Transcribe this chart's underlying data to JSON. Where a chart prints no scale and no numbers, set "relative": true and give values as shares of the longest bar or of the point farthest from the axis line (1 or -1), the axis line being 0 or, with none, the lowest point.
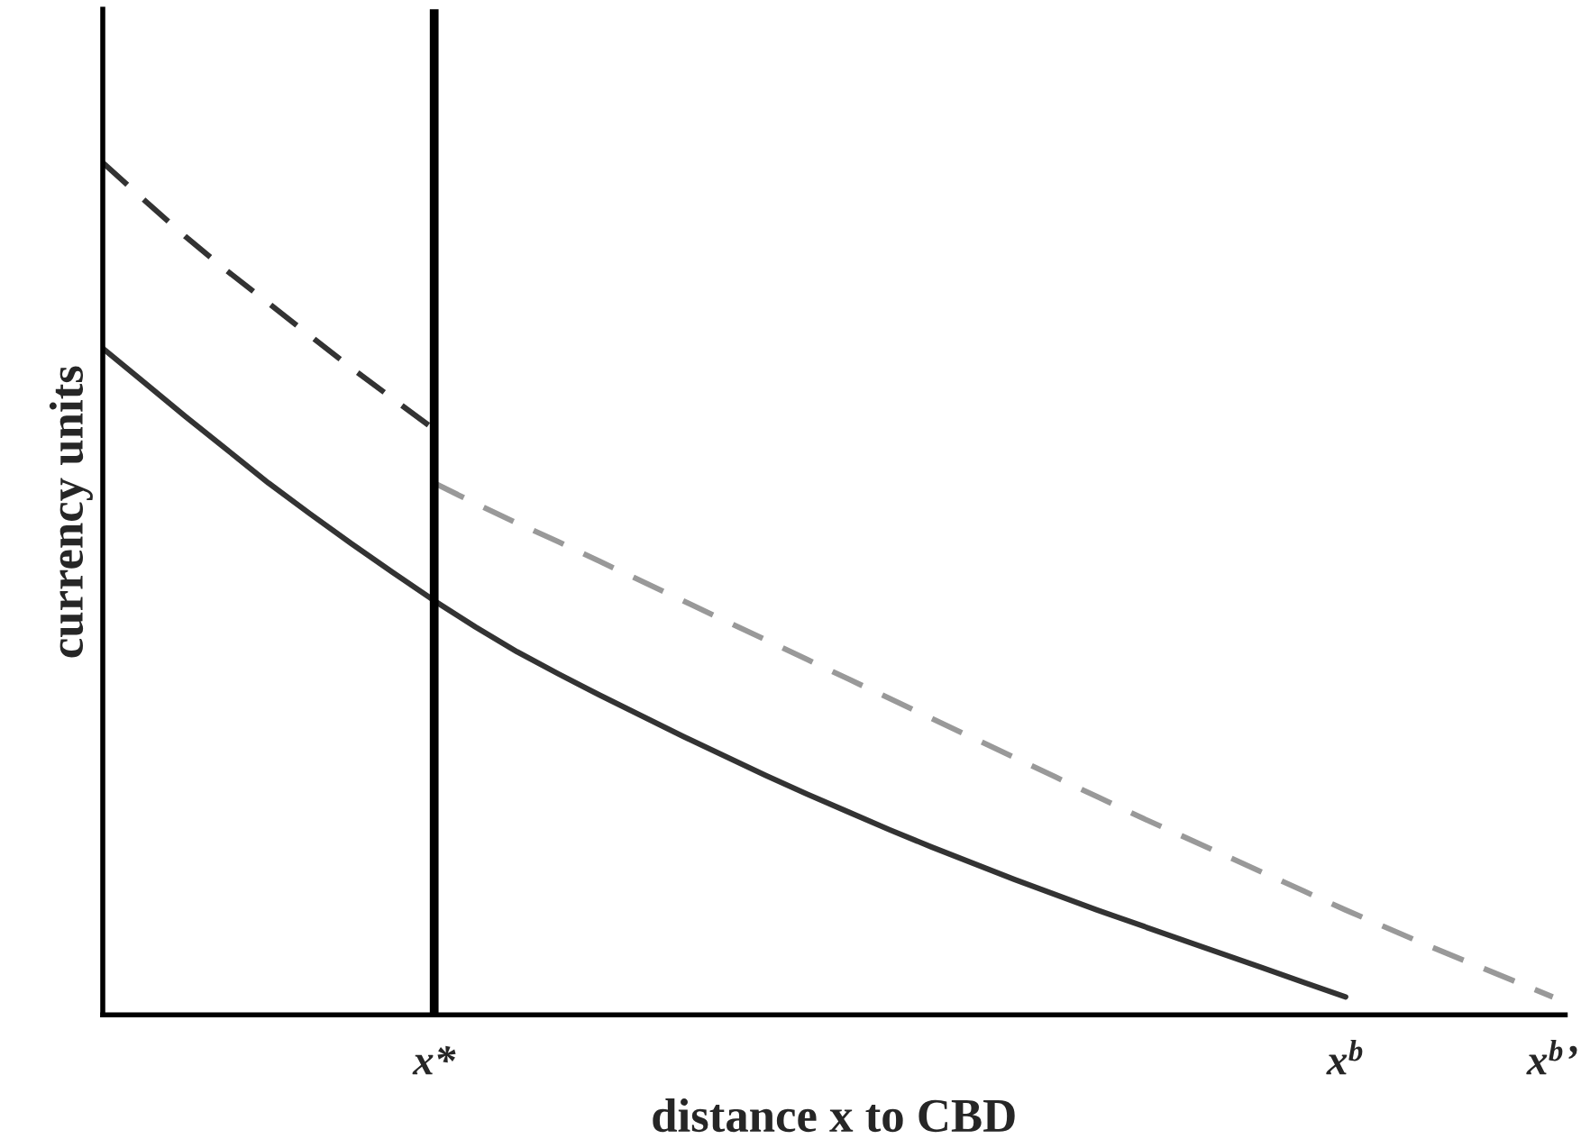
{
  "chart_data": {
    "type": "line",
    "relative": true,
    "xlabel": "distance x to CBD",
    "ylabel": "currency units",
    "categories": [
      null,
      null,
      null,
      null,
      null,
      null,
      null,
      null,
      "x*",
      null,
      null,
      null,
      null,
      null,
      null,
      null,
      null,
      null,
      null,
      null,
      null,
      null,
      null,
      null,
      null,
      null,
      null,
      null,
      null,
      null,
      "x$^{b}$",
      null,
      null,
      null,
      null,
      "x$^{b}$’"
    ],
    "tick_labels": "x",
    "grid": false,
    "legend": false,
    "marker": "none",
    "series": [
      {
        "color": "#333333",
        "line_style": "solid",
        "values": [
          0.782,
          0.742,
          0.702,
          0.663,
          0.624,
          0.588,
          0.553,
          0.519,
          0.486,
          0.455,
          0.426,
          0.4,
          0.375,
          0.351,
          0.327,
          0.304,
          0.281,
          0.259,
          0.238,
          0.217,
          0.197,
          0.178,
          0.159,
          0.141,
          0.123,
          0.106,
          0.089,
          0.072,
          0.055,
          0.038,
          0.021,
          null,
          null,
          null,
          null,
          null
        ]
      },
      {
        "color": "#333333",
        "line_style": "dashed",
        "values": [
          1.0,
          0.956,
          0.913,
          0.873,
          0.835,
          0.797,
          0.759,
          0.723,
          0.687,
          null,
          null,
          null,
          null,
          null,
          null,
          null,
          null,
          null,
          null,
          null,
          null,
          null,
          null,
          null,
          null,
          null,
          null,
          null,
          null,
          null,
          null,
          null,
          null,
          null,
          null,
          null
        ]
      },
      {
        "color": "#999999",
        "line_style": "dashed",
        "values": [
          null,
          null,
          null,
          null,
          null,
          null,
          null,
          null,
          0.624,
          0.6,
          0.577,
          0.555,
          0.532,
          0.509,
          0.486,
          0.463,
          0.44,
          0.417,
          0.394,
          0.371,
          0.348,
          0.325,
          0.302,
          0.279,
          0.256,
          0.233,
          0.211,
          0.189,
          0.167,
          0.145,
          0.123,
          0.102,
          0.081,
          0.061,
          0.041,
          0.021
        ]
      }
    ],
    "ref_lines": [
      {
        "axis": "x",
        "value": "x*",
        "color": "#000000",
        "line_style": "solid"
      }
    ]
  }
}
